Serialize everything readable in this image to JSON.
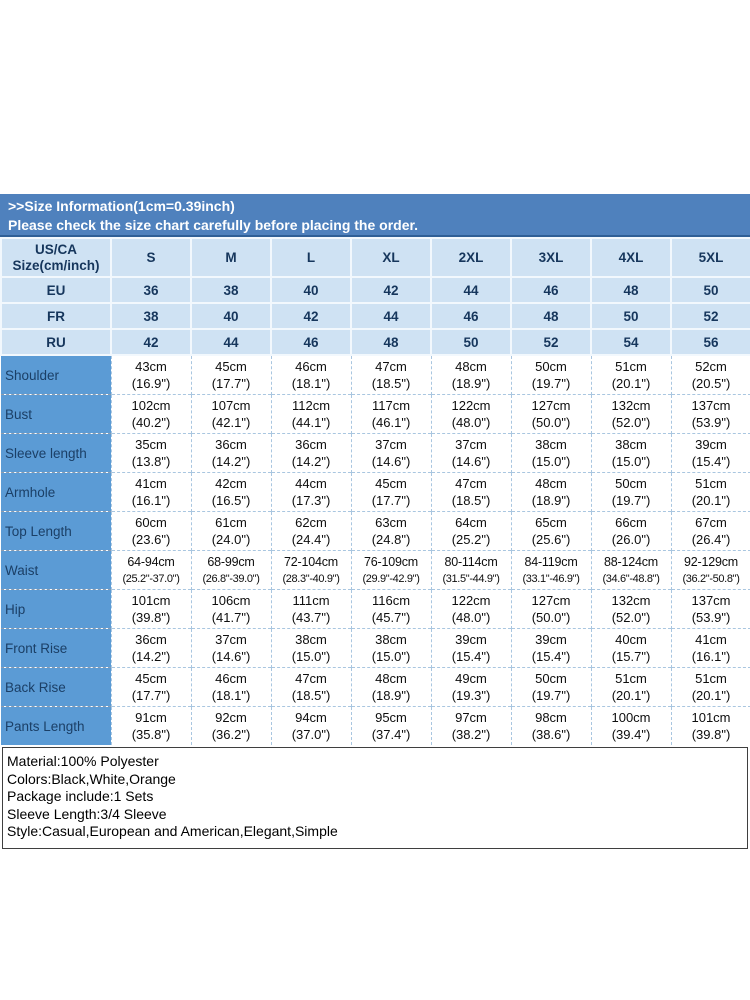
{
  "banner": {
    "title": ">>Size Information(1cm=0.39inch)",
    "subtitle": "Please check the size chart carefully before placing the order."
  },
  "colors": {
    "banner_bg": "#4f81bd",
    "header_row_bg": "#cfe2f3",
    "label_column_bg": "#5b9bd5",
    "header_text": "#16365c",
    "data_text": "#0e0e0e",
    "page_bg": "#ffffff"
  },
  "size_table": {
    "type": "table",
    "header": {
      "col1_line1": "US/CA",
      "col1_line2": "Size(cm/inch)",
      "sizes": [
        "S",
        "M",
        "L",
        "XL",
        "2XL",
        "3XL",
        "4XL",
        "5XL"
      ]
    },
    "size_rows": [
      {
        "label": "EU",
        "values": [
          "36",
          "38",
          "40",
          "42",
          "44",
          "46",
          "48",
          "50"
        ]
      },
      {
        "label": "FR",
        "values": [
          "38",
          "40",
          "42",
          "44",
          "46",
          "48",
          "50",
          "52"
        ]
      },
      {
        "label": "RU",
        "values": [
          "42",
          "44",
          "46",
          "48",
          "50",
          "52",
          "54",
          "56"
        ]
      }
    ],
    "measurement_rows": [
      {
        "label": "Shoulder",
        "values": [
          [
            "43cm",
            "(16.9\")"
          ],
          [
            "45cm",
            "(17.7\")"
          ],
          [
            "46cm",
            "(18.1\")"
          ],
          [
            "47cm",
            "(18.5\")"
          ],
          [
            "48cm",
            "(18.9\")"
          ],
          [
            "50cm",
            "(19.7\")"
          ],
          [
            "51cm",
            "(20.1\")"
          ],
          [
            "52cm",
            "(20.5\")"
          ]
        ]
      },
      {
        "label": "Bust",
        "values": [
          [
            "102cm",
            "(40.2\")"
          ],
          [
            "107cm",
            "(42.1\")"
          ],
          [
            "112cm",
            "(44.1\")"
          ],
          [
            "117cm",
            "(46.1\")"
          ],
          [
            "122cm",
            "(48.0\")"
          ],
          [
            "127cm",
            "(50.0\")"
          ],
          [
            "132cm",
            "(52.0\")"
          ],
          [
            "137cm",
            "(53.9\")"
          ]
        ]
      },
      {
        "label": "Sleeve length",
        "values": [
          [
            "35cm",
            "(13.8\")"
          ],
          [
            "36cm",
            "(14.2\")"
          ],
          [
            "36cm",
            "(14.2\")"
          ],
          [
            "37cm",
            "(14.6\")"
          ],
          [
            "37cm",
            "(14.6\")"
          ],
          [
            "38cm",
            "(15.0\")"
          ],
          [
            "38cm",
            "(15.0\")"
          ],
          [
            "39cm",
            "(15.4\")"
          ]
        ]
      },
      {
        "label": "Armhole",
        "values": [
          [
            "41cm",
            "(16.1\")"
          ],
          [
            "42cm",
            "(16.5\")"
          ],
          [
            "44cm",
            "(17.3\")"
          ],
          [
            "45cm",
            "(17.7\")"
          ],
          [
            "47cm",
            "(18.5\")"
          ],
          [
            "48cm",
            "(18.9\")"
          ],
          [
            "50cm",
            "(19.7\")"
          ],
          [
            "51cm",
            "(20.1\")"
          ]
        ]
      },
      {
        "label": "Top Length",
        "values": [
          [
            "60cm",
            "(23.6\")"
          ],
          [
            "61cm",
            "(24.0\")"
          ],
          [
            "62cm",
            "(24.4\")"
          ],
          [
            "63cm",
            "(24.8\")"
          ],
          [
            "64cm",
            "(25.2\")"
          ],
          [
            "65cm",
            "(25.6\")"
          ],
          [
            "66cm",
            "(26.0\")"
          ],
          [
            "67cm",
            "(26.4\")"
          ]
        ]
      },
      {
        "label": "Waist",
        "values": [
          [
            "64-94cm",
            "(25.2\"-37.0\")"
          ],
          [
            "68-99cm",
            "(26.8\"-39.0\")"
          ],
          [
            "72-104cm",
            "(28.3\"-40.9\")"
          ],
          [
            "76-109cm",
            "(29.9\"-42.9\")"
          ],
          [
            "80-114cm",
            "(31.5\"-44.9\")"
          ],
          [
            "84-119cm",
            "(33.1\"-46.9\")"
          ],
          [
            "88-124cm",
            "(34.6\"-48.8\")"
          ],
          [
            "92-129cm",
            "(36.2\"-50.8\")"
          ]
        ]
      },
      {
        "label": "Hip",
        "values": [
          [
            "101cm",
            "(39.8\")"
          ],
          [
            "106cm",
            "(41.7\")"
          ],
          [
            "111cm",
            "(43.7\")"
          ],
          [
            "116cm",
            "(45.7\")"
          ],
          [
            "122cm",
            "(48.0\")"
          ],
          [
            "127cm",
            "(50.0\")"
          ],
          [
            "132cm",
            "(52.0\")"
          ],
          [
            "137cm",
            "(53.9\")"
          ]
        ]
      },
      {
        "label": "Front Rise",
        "values": [
          [
            "36cm",
            "(14.2\")"
          ],
          [
            "37cm",
            "(14.6\")"
          ],
          [
            "38cm",
            "(15.0\")"
          ],
          [
            "38cm",
            "(15.0\")"
          ],
          [
            "39cm",
            "(15.4\")"
          ],
          [
            "39cm",
            "(15.4\")"
          ],
          [
            "40cm",
            "(15.7\")"
          ],
          [
            "41cm",
            "(16.1\")"
          ]
        ]
      },
      {
        "label": "Back Rise",
        "values": [
          [
            "45cm",
            "(17.7\")"
          ],
          [
            "46cm",
            "(18.1\")"
          ],
          [
            "47cm",
            "(18.5\")"
          ],
          [
            "48cm",
            "(18.9\")"
          ],
          [
            "49cm",
            "(19.3\")"
          ],
          [
            "50cm",
            "(19.7\")"
          ],
          [
            "51cm",
            "(20.1\")"
          ],
          [
            "51cm",
            "(20.1\")"
          ]
        ]
      },
      {
        "label": "Pants Length",
        "values": [
          [
            "91cm",
            "(35.8\")"
          ],
          [
            "92cm",
            "(36.2\")"
          ],
          [
            "94cm",
            "(37.0\")"
          ],
          [
            "95cm",
            "(37.4\")"
          ],
          [
            "97cm",
            "(38.2\")"
          ],
          [
            "98cm",
            "(38.6\")"
          ],
          [
            "100cm",
            "(39.4\")"
          ],
          [
            "101cm",
            "(39.8\")"
          ]
        ]
      }
    ]
  },
  "specs": {
    "lines": [
      "Material:100% Polyester",
      "Colors:Black,White,Orange",
      "Package include:1 Sets",
      "Sleeve Length:3/4 Sleeve",
      "Style:Casual,European and American,Elegant,Simple"
    ]
  }
}
